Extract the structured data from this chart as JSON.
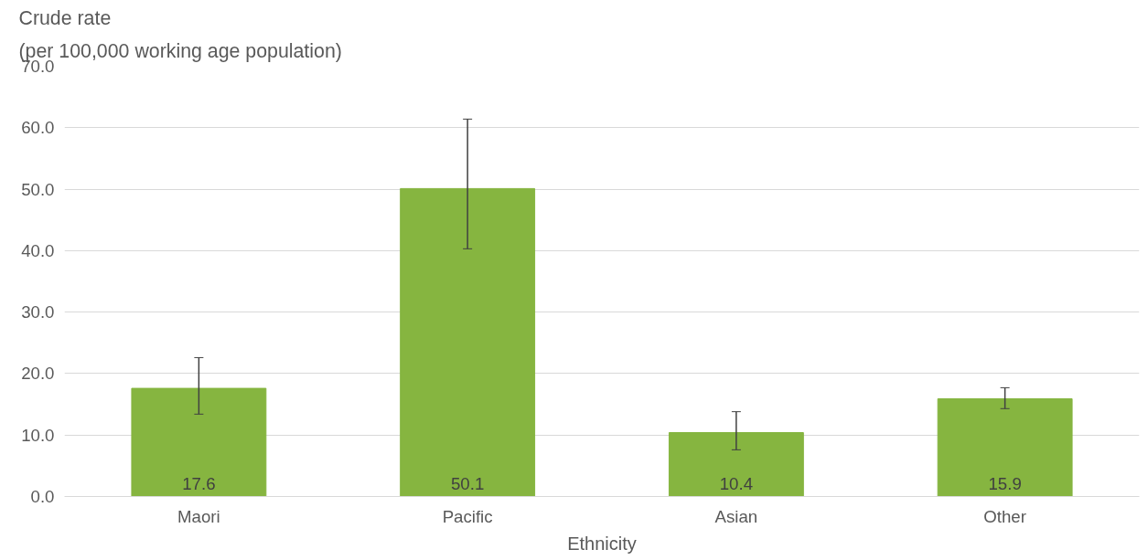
{
  "chart_data": {
    "type": "bar",
    "ylabel": "Crude rate\n(per 100,000 working age population)",
    "xlabel": "Ethnicity",
    "categories": [
      "Maori",
      "Pacific",
      "Asian",
      "Other"
    ],
    "values": [
      17.6,
      50.1,
      10.4,
      15.9
    ],
    "color": "#86b540",
    "errors": [
      [
        13.4,
        22.6
      ],
      [
        40.3,
        61.4
      ],
      [
        7.6,
        13.8
      ],
      [
        14.3,
        17.7
      ]
    ],
    "data_labels": true,
    "ylim": [
      0,
      70
    ],
    "yticks": [
      {
        "value": 0,
        "label": "0.0"
      },
      {
        "value": 10,
        "label": "10.0"
      },
      {
        "value": 20,
        "label": "20.0"
      },
      {
        "value": 30,
        "label": "30.0"
      },
      {
        "value": 40,
        "label": "40.0"
      },
      {
        "value": 50,
        "label": "50.0"
      },
      {
        "value": 60,
        "label": "60.0"
      },
      {
        "value": 70,
        "label": "70.0"
      }
    ],
    "grid": "y"
  }
}
